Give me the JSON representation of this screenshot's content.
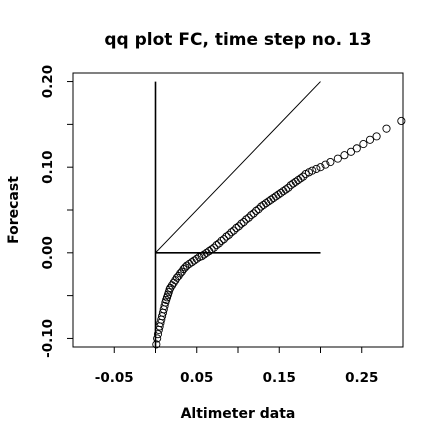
{
  "chart_data": {
    "type": "scatter",
    "title": "qq plot FC, time step no. 13",
    "xlabel": "Altimeter data",
    "ylabel": "Forecast",
    "xlim": [
      -0.1,
      0.3
    ],
    "ylim": [
      -0.11,
      0.21
    ],
    "x_ticks": [
      {
        "value": -0.05,
        "label": "-0.05"
      },
      {
        "value": 0.05,
        "label": "0.05"
      },
      {
        "value": 0.15,
        "label": "0.15"
      },
      {
        "value": 0.25,
        "label": "0.25"
      }
    ],
    "x_minor_ticks": [
      0.0,
      0.1,
      0.2
    ],
    "y_ticks": [
      {
        "value": -0.1,
        "label": "-0.10"
      },
      {
        "value": 0.0,
        "label": "0.00"
      },
      {
        "value": 0.1,
        "label": "0.10"
      },
      {
        "value": 0.2,
        "label": "0.20"
      }
    ],
    "y_minor_ticks": [
      -0.05,
      0.05,
      0.15
    ],
    "marker": "open-circle",
    "colors": {
      "points": "#000000",
      "lines": "#000000",
      "background": "#ffffff"
    },
    "reference_lines": [
      {
        "name": "identity",
        "x": [
          0.0,
          0.2
        ],
        "y": [
          0.0,
          0.2
        ]
      },
      {
        "name": "horizontal-zero",
        "x": [
          0.0,
          0.2
        ],
        "y": [
          0.0,
          0.0
        ]
      },
      {
        "name": "vertical-zero",
        "x": [
          0.0,
          0.0
        ],
        "y": [
          -0.11,
          0.2
        ]
      }
    ],
    "points": [
      [
        0.001,
        -0.107
      ],
      [
        0.002,
        -0.1
      ],
      [
        0.003,
        -0.095
      ],
      [
        0.004,
        -0.09
      ],
      [
        0.005,
        -0.086
      ],
      [
        0.006,
        -0.082
      ],
      [
        0.007,
        -0.078
      ],
      [
        0.008,
        -0.074
      ],
      [
        0.009,
        -0.07
      ],
      [
        0.01,
        -0.066
      ],
      [
        0.011,
        -0.062
      ],
      [
        0.012,
        -0.058
      ],
      [
        0.013,
        -0.055
      ],
      [
        0.014,
        -0.052
      ],
      [
        0.015,
        -0.049
      ],
      [
        0.016,
        -0.046
      ],
      [
        0.017,
        -0.043
      ],
      [
        0.018,
        -0.041
      ],
      [
        0.02,
        -0.038
      ],
      [
        0.022,
        -0.035
      ],
      [
        0.024,
        -0.032
      ],
      [
        0.026,
        -0.029
      ],
      [
        0.028,
        -0.027
      ],
      [
        0.03,
        -0.024
      ],
      [
        0.032,
        -0.022
      ],
      [
        0.034,
        -0.019
      ],
      [
        0.036,
        -0.017
      ],
      [
        0.038,
        -0.015
      ],
      [
        0.041,
        -0.013
      ],
      [
        0.044,
        -0.011
      ],
      [
        0.047,
        -0.009
      ],
      [
        0.05,
        -0.007
      ],
      [
        0.053,
        -0.005
      ],
      [
        0.056,
        -0.004
      ],
      [
        0.059,
        -0.002
      ],
      [
        0.062,
        0.0
      ],
      [
        0.065,
        0.002
      ],
      [
        0.068,
        0.004
      ],
      [
        0.071,
        0.006
      ],
      [
        0.074,
        0.009
      ],
      [
        0.077,
        0.011
      ],
      [
        0.08,
        0.014
      ],
      [
        0.083,
        0.016
      ],
      [
        0.086,
        0.019
      ],
      [
        0.089,
        0.021
      ],
      [
        0.092,
        0.024
      ],
      [
        0.095,
        0.026
      ],
      [
        0.098,
        0.029
      ],
      [
        0.101,
        0.031
      ],
      [
        0.104,
        0.034
      ],
      [
        0.107,
        0.036
      ],
      [
        0.11,
        0.039
      ],
      [
        0.113,
        0.041
      ],
      [
        0.116,
        0.044
      ],
      [
        0.119,
        0.046
      ],
      [
        0.122,
        0.049
      ],
      [
        0.125,
        0.051
      ],
      [
        0.128,
        0.054
      ],
      [
        0.131,
        0.056
      ],
      [
        0.134,
        0.058
      ],
      [
        0.137,
        0.06
      ],
      [
        0.14,
        0.062
      ],
      [
        0.143,
        0.064
      ],
      [
        0.146,
        0.066
      ],
      [
        0.149,
        0.068
      ],
      [
        0.152,
        0.07
      ],
      [
        0.155,
        0.072
      ],
      [
        0.158,
        0.074
      ],
      [
        0.161,
        0.076
      ],
      [
        0.164,
        0.079
      ],
      [
        0.167,
        0.081
      ],
      [
        0.17,
        0.083
      ],
      [
        0.173,
        0.085
      ],
      [
        0.176,
        0.087
      ],
      [
        0.179,
        0.089
      ],
      [
        0.182,
        0.092
      ],
      [
        0.186,
        0.094
      ],
      [
        0.19,
        0.096
      ],
      [
        0.195,
        0.098
      ],
      [
        0.2,
        0.1
      ],
      [
        0.206,
        0.103
      ],
      [
        0.212,
        0.106
      ],
      [
        0.221,
        0.11
      ],
      [
        0.229,
        0.114
      ],
      [
        0.237,
        0.118
      ],
      [
        0.244,
        0.122
      ],
      [
        0.252,
        0.127
      ],
      [
        0.26,
        0.132
      ],
      [
        0.268,
        0.136
      ],
      [
        0.28,
        0.145
      ],
      [
        0.298,
        0.154
      ]
    ]
  }
}
